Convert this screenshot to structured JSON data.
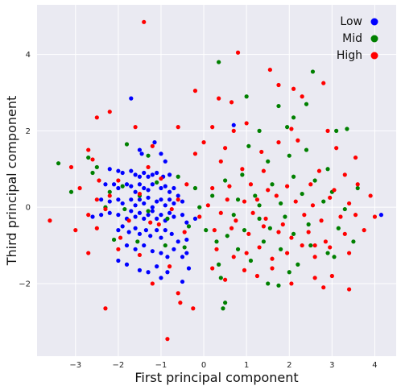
{
  "chart_data": {
    "type": "scatter",
    "xlabel": "First principal component",
    "ylabel": "Third principal component",
    "xlim": [
      -3.9,
      4.5
    ],
    "ylim": [
      -3.9,
      5.3
    ],
    "x_ticks": [
      -3,
      -2,
      -1,
      0,
      1,
      2,
      3,
      4
    ],
    "y_ticks": [
      -2,
      0,
      2,
      4
    ],
    "x_tick_labels": [
      "−3",
      "−2",
      "−1",
      "0",
      "1",
      "2",
      "3",
      "4"
    ],
    "y_tick_labels": [
      "−2",
      "0",
      "2",
      "4"
    ],
    "grid": true,
    "legend_position": "top-right",
    "colors": {
      "background": "#eaeaf2",
      "grid": "#ffffff"
    },
    "series": [
      {
        "name": "Low",
        "color": "#0000ff",
        "points": [
          [
            -1.7,
            2.85
          ],
          [
            -1.5,
            1.5
          ],
          [
            -1.45,
            1.4
          ],
          [
            -1.15,
            1.7
          ],
          [
            -1.0,
            1.4
          ],
          [
            -0.9,
            1.2
          ],
          [
            -2.2,
            1.0
          ],
          [
            -2.0,
            0.95
          ],
          [
            -1.9,
            0.9
          ],
          [
            -1.7,
            0.95
          ],
          [
            -1.6,
            0.85
          ],
          [
            -1.5,
            0.8
          ],
          [
            -1.4,
            0.9
          ],
          [
            -1.3,
            0.8
          ],
          [
            -1.2,
            0.85
          ],
          [
            -1.1,
            0.9
          ],
          [
            -0.95,
            0.8
          ],
          [
            -0.8,
            0.85
          ],
          [
            -2.3,
            0.6
          ],
          [
            -2.1,
            0.6
          ],
          [
            -2.0,
            0.5
          ],
          [
            -1.8,
            0.6
          ],
          [
            -1.7,
            0.55
          ],
          [
            -1.6,
            0.4
          ],
          [
            -1.5,
            0.6
          ],
          [
            -1.4,
            0.5
          ],
          [
            -1.3,
            0.45
          ],
          [
            -1.2,
            0.6
          ],
          [
            -1.0,
            0.5
          ],
          [
            -0.9,
            0.55
          ],
          [
            -0.8,
            0.4
          ],
          [
            -0.7,
            0.5
          ],
          [
            -0.6,
            0.3
          ],
          [
            -2.4,
            0.2
          ],
          [
            -2.2,
            0.15
          ],
          [
            -2.0,
            0.2
          ],
          [
            -1.9,
            0.1
          ],
          [
            -1.7,
            0.2
          ],
          [
            -1.6,
            0.05
          ],
          [
            -1.5,
            0.2
          ],
          [
            -1.4,
            0.1
          ],
          [
            -1.3,
            0.25
          ],
          [
            -1.2,
            0.0
          ],
          [
            -1.1,
            0.15
          ],
          [
            -1.0,
            0.2
          ],
          [
            -0.9,
            0.05
          ],
          [
            -0.8,
            0.2
          ],
          [
            -0.7,
            0.1
          ],
          [
            -0.5,
            0.15
          ],
          [
            -2.6,
            -0.25
          ],
          [
            -2.4,
            -0.2
          ],
          [
            -2.2,
            -0.15
          ],
          [
            -2.0,
            -0.2
          ],
          [
            -1.8,
            -0.3
          ],
          [
            -1.7,
            -0.1
          ],
          [
            -1.6,
            -0.25
          ],
          [
            -1.5,
            -0.15
          ],
          [
            -1.4,
            -0.3
          ],
          [
            -1.3,
            -0.2
          ],
          [
            -1.2,
            -0.1
          ],
          [
            -1.1,
            -0.3
          ],
          [
            -1.0,
            -0.2
          ],
          [
            -0.9,
            -0.35
          ],
          [
            -0.8,
            -0.15
          ],
          [
            -0.7,
            -0.25
          ],
          [
            -0.5,
            -0.2
          ],
          [
            -0.4,
            -0.4
          ],
          [
            -0.2,
            -0.3
          ],
          [
            -2.0,
            -0.6
          ],
          [
            -1.9,
            -0.5
          ],
          [
            -1.75,
            -0.65
          ],
          [
            -1.6,
            -0.55
          ],
          [
            -1.5,
            -0.7
          ],
          [
            -1.35,
            -0.6
          ],
          [
            -1.25,
            -0.75
          ],
          [
            -1.1,
            -0.6
          ],
          [
            -1.0,
            -0.8
          ],
          [
            -0.9,
            -0.6
          ],
          [
            -0.75,
            -0.7
          ],
          [
            -0.6,
            -0.9
          ],
          [
            -0.4,
            -0.85
          ],
          [
            -1.8,
            -1.0
          ],
          [
            -1.6,
            -1.1
          ],
          [
            -1.4,
            -1.0
          ],
          [
            -1.2,
            -1.15
          ],
          [
            -1.0,
            -1.2
          ],
          [
            -0.85,
            -1.3
          ],
          [
            -0.7,
            -1.1
          ],
          [
            -0.5,
            -1.3
          ],
          [
            -0.4,
            -1.2
          ],
          [
            -2.0,
            -1.4
          ],
          [
            -1.8,
            -1.5
          ],
          [
            -1.5,
            -1.65
          ],
          [
            -1.3,
            -1.7
          ],
          [
            -1.1,
            -1.55
          ],
          [
            -1.0,
            -1.85
          ],
          [
            -0.85,
            -1.7
          ],
          [
            -0.5,
            -1.95
          ],
          [
            -0.35,
            -1.6
          ],
          [
            0.7,
            2.15
          ],
          [
            4.15,
            -0.2
          ]
        ]
      },
      {
        "name": "Mid",
        "color": "#008000",
        "points": [
          [
            0.35,
            3.8
          ],
          [
            1.0,
            2.9
          ],
          [
            2.55,
            3.55
          ],
          [
            1.95,
            2.1
          ],
          [
            1.75,
            2.65
          ],
          [
            2.1,
            2.35
          ],
          [
            2.4,
            2.7
          ],
          [
            3.35,
            2.05
          ],
          [
            1.3,
            2.0
          ],
          [
            -2.5,
            1.05
          ],
          [
            -2.6,
            0.9
          ],
          [
            -2.7,
            1.3
          ],
          [
            -3.4,
            1.15
          ],
          [
            -3.1,
            0.4
          ],
          [
            -1.8,
            1.65
          ],
          [
            -1.3,
            1.35
          ],
          [
            -2.2,
            0.4
          ],
          [
            -1.9,
            0.55
          ],
          [
            -1.5,
            0.3
          ],
          [
            -1.1,
            0.65
          ],
          [
            -0.6,
            0.8
          ],
          [
            -0.2,
            0.5
          ],
          [
            0.2,
            0.3
          ],
          [
            -2.3,
            0.0
          ],
          [
            -1.85,
            -0.05
          ],
          [
            -1.3,
            -0.1
          ],
          [
            -0.85,
            -0.3
          ],
          [
            -0.35,
            -0.5
          ],
          [
            0.05,
            -0.6
          ],
          [
            -2.1,
            -0.85
          ],
          [
            -1.55,
            -0.9
          ],
          [
            -0.9,
            -1.0
          ],
          [
            -0.45,
            -1.05
          ],
          [
            0.55,
            -0.75
          ],
          [
            0.35,
            -1.5
          ],
          [
            0.95,
            -0.6
          ],
          [
            1.1,
            -1.4
          ],
          [
            1.4,
            -0.9
          ],
          [
            1.8,
            -1.1
          ],
          [
            2.2,
            -1.5
          ],
          [
            2.5,
            -1.0
          ],
          [
            2.9,
            -1.2
          ],
          [
            0.4,
            -1.85
          ],
          [
            1.5,
            -2.0
          ],
          [
            2.0,
            -1.7
          ],
          [
            1.75,
            -2.05
          ],
          [
            0.5,
            0.7
          ],
          [
            0.9,
            0.85
          ],
          [
            1.6,
            0.6
          ],
          [
            2.1,
            0.8
          ],
          [
            2.6,
            0.7
          ],
          [
            3.0,
            0.4
          ],
          [
            3.6,
            0.5
          ],
          [
            0.8,
            0.2
          ],
          [
            1.2,
            0.3
          ],
          [
            1.8,
            0.1
          ],
          [
            2.3,
            0.35
          ],
          [
            2.8,
            0.15
          ],
          [
            3.3,
            -0.05
          ],
          [
            0.7,
            -0.2
          ],
          [
            1.3,
            -0.3
          ],
          [
            1.9,
            -0.25
          ],
          [
            2.45,
            -0.45
          ],
          [
            3.15,
            -0.55
          ],
          [
            3.5,
            -0.9
          ],
          [
            0.5,
            -2.5
          ],
          [
            0.45,
            -2.65
          ],
          [
            1.05,
            1.6
          ],
          [
            1.5,
            1.2
          ],
          [
            2.0,
            1.35
          ],
          [
            2.4,
            1.5
          ],
          [
            2.9,
            1.0
          ],
          [
            1.3,
            0.05
          ],
          [
            1.55,
            -0.55
          ],
          [
            2.1,
            -0.7
          ],
          [
            0.3,
            -0.9
          ],
          [
            0.8,
            -1.1
          ],
          [
            -0.1,
            0.0
          ],
          [
            3.05,
            -1.3
          ],
          [
            3.1,
            2.0
          ]
        ]
      },
      {
        "name": "High",
        "color": "#ff0000",
        "points": [
          [
            -1.4,
            4.85
          ],
          [
            0.8,
            4.05
          ],
          [
            1.55,
            3.6
          ],
          [
            2.8,
            3.25
          ],
          [
            1.75,
            3.2
          ],
          [
            2.1,
            3.1
          ],
          [
            -0.2,
            3.05
          ],
          [
            0.35,
            2.85
          ],
          [
            0.65,
            2.75
          ],
          [
            2.3,
            2.9
          ],
          [
            -2.2,
            2.5
          ],
          [
            -2.5,
            2.35
          ],
          [
            -1.6,
            2.1
          ],
          [
            -0.6,
            2.1
          ],
          [
            0.2,
            2.1
          ],
          [
            0.7,
            2.0
          ],
          [
            1.0,
            2.2
          ],
          [
            2.05,
            2.05
          ],
          [
            2.9,
            2.0
          ],
          [
            -2.7,
            1.5
          ],
          [
            -2.6,
            1.25
          ],
          [
            -1.2,
            1.6
          ],
          [
            0.0,
            1.7
          ],
          [
            0.5,
            1.55
          ],
          [
            1.35,
            1.45
          ],
          [
            1.75,
            1.7
          ],
          [
            2.2,
            1.75
          ],
          [
            3.1,
            1.55
          ],
          [
            3.55,
            1.3
          ],
          [
            -3.1,
            1.05
          ],
          [
            -2.9,
            0.5
          ],
          [
            -2.45,
            0.7
          ],
          [
            -1.3,
            1.05
          ],
          [
            -0.2,
            1.4
          ],
          [
            0.4,
            1.2
          ],
          [
            0.9,
            1.0
          ],
          [
            1.4,
            0.95
          ],
          [
            2.7,
            0.95
          ],
          [
            3.3,
            0.85
          ],
          [
            -2.0,
            0.7
          ],
          [
            -1.0,
            0.75
          ],
          [
            -0.4,
            0.6
          ],
          [
            0.2,
            0.5
          ],
          [
            0.6,
            0.55
          ],
          [
            1.1,
            0.6
          ],
          [
            1.5,
            0.45
          ],
          [
            1.95,
            0.55
          ],
          [
            2.5,
            0.6
          ],
          [
            3.05,
            0.45
          ],
          [
            3.6,
            0.6
          ],
          [
            -2.5,
            0.2
          ],
          [
            -2.2,
            0.3
          ],
          [
            -1.5,
            0.35
          ],
          [
            -0.6,
            0.2
          ],
          [
            0.1,
            0.05
          ],
          [
            0.55,
            0.2
          ],
          [
            0.95,
            0.15
          ],
          [
            1.25,
            0.2
          ],
          [
            1.7,
            0.3
          ],
          [
            2.15,
            0.15
          ],
          [
            2.55,
            0.05
          ],
          [
            2.95,
            0.25
          ],
          [
            3.4,
            0.1
          ],
          [
            3.9,
            0.3
          ],
          [
            -3.6,
            -0.35
          ],
          [
            -2.7,
            -0.2
          ],
          [
            -2.3,
            -0.05
          ],
          [
            -1.75,
            -0.35
          ],
          [
            -1.25,
            -0.4
          ],
          [
            -0.75,
            -0.05
          ],
          [
            -0.1,
            -0.25
          ],
          [
            0.4,
            -0.15
          ],
          [
            0.75,
            -0.35
          ],
          [
            1.15,
            -0.15
          ],
          [
            1.45,
            -0.3
          ],
          [
            1.85,
            -0.45
          ],
          [
            2.35,
            -0.2
          ],
          [
            2.75,
            -0.35
          ],
          [
            3.2,
            -0.25
          ],
          [
            3.55,
            -0.2
          ],
          [
            4.0,
            -0.25
          ],
          [
            -3.0,
            -0.6
          ],
          [
            -2.5,
            -0.55
          ],
          [
            -1.95,
            -0.8
          ],
          [
            -1.05,
            -0.45
          ],
          [
            -0.45,
            -0.65
          ],
          [
            0.25,
            -0.6
          ],
          [
            0.65,
            -0.55
          ],
          [
            1.05,
            -0.7
          ],
          [
            1.4,
            -0.5
          ],
          [
            1.75,
            -0.65
          ],
          [
            2.05,
            -0.8
          ],
          [
            2.45,
            -0.65
          ],
          [
            2.85,
            -0.9
          ],
          [
            3.3,
            -0.7
          ],
          [
            3.75,
            -0.6
          ],
          [
            -2.7,
            -1.2
          ],
          [
            -2.0,
            -1.1
          ],
          [
            -1.5,
            -1.25
          ],
          [
            -0.8,
            -1.55
          ],
          [
            0.3,
            -1.1
          ],
          [
            0.7,
            -1.3
          ],
          [
            1.0,
            -1.2
          ],
          [
            1.3,
            -1.05
          ],
          [
            1.6,
            -1.35
          ],
          [
            1.95,
            -1.2
          ],
          [
            2.3,
            -1.0
          ],
          [
            2.6,
            -1.3
          ],
          [
            2.95,
            -1.05
          ],
          [
            3.4,
            -1.2
          ],
          [
            -1.2,
            -2.0
          ],
          [
            -0.6,
            -2.25
          ],
          [
            0.2,
            -1.6
          ],
          [
            0.5,
            -1.9
          ],
          [
            0.95,
            -1.65
          ],
          [
            1.25,
            -1.8
          ],
          [
            1.6,
            -1.6
          ],
          [
            2.05,
            -2.0
          ],
          [
            2.6,
            -1.85
          ],
          [
            3.0,
            -1.8
          ],
          [
            3.4,
            -2.15
          ],
          [
            2.8,
            -2.1
          ],
          [
            -2.3,
            -2.65
          ],
          [
            -0.25,
            -2.65
          ],
          [
            -0.55,
            -2.5
          ],
          [
            -0.85,
            -3.45
          ],
          [
            2.6,
            -1.0
          ]
        ]
      }
    ]
  }
}
